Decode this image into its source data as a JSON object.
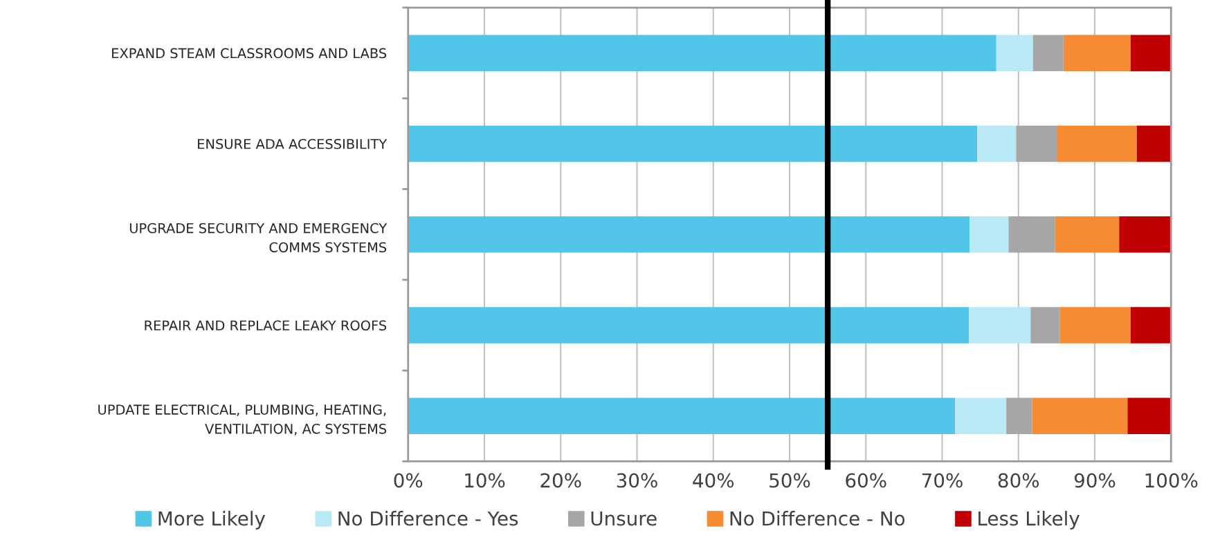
{
  "chart_data": {
    "type": "bar",
    "orientation": "horizontal",
    "stacked": true,
    "categories": [
      "EXPAND STEAM CLASSROOMS AND LABS",
      "ENSURE ADA ACCESSIBILITY",
      "UPGRADE SECURITY AND EMERGENCY\nCOMMS SYSTEMS",
      "REPAIR AND REPLACE LEAKY ROOFS",
      "UPDATE ELECTRICAL, PLUMBING, HEATING,\nVENTILATION, AC SYSTEMS"
    ],
    "series": [
      {
        "name": "More Likely",
        "color": "#51c6e8",
        "values": [
          77.1,
          74.6,
          73.6,
          73.5,
          71.7
        ]
      },
      {
        "name": "No Difference - Yes",
        "color": "#bae9f6",
        "values": [
          4.8,
          5.1,
          5.1,
          8.1,
          6.7
        ]
      },
      {
        "name": "Unsure",
        "color": "#a6a6a6",
        "values": [
          4.0,
          5.4,
          6.1,
          3.8,
          3.4
        ]
      },
      {
        "name": "No Difference - No",
        "color": "#f68b33",
        "values": [
          8.8,
          10.4,
          8.4,
          9.3,
          12.5
        ]
      },
      {
        "name": "Less Likely",
        "color": "#c00000",
        "values": [
          5.3,
          4.5,
          6.8,
          5.3,
          5.7
        ]
      }
    ],
    "xlim": [
      0,
      100
    ],
    "xticks": [
      {
        "value": 0,
        "label": "0%"
      },
      {
        "value": 10,
        "label": "10%"
      },
      {
        "value": 20,
        "label": "20%"
      },
      {
        "value": 30,
        "label": "30%"
      },
      {
        "value": 40,
        "label": "40%"
      },
      {
        "value": 50,
        "label": "50%"
      },
      {
        "value": 60,
        "label": "60%"
      },
      {
        "value": 70,
        "label": "70%"
      },
      {
        "value": 80,
        "label": "80%"
      },
      {
        "value": 90,
        "label": "90%"
      },
      {
        "value": 100,
        "label": "100%"
      }
    ],
    "grid": "x",
    "legend": "bottom",
    "ref_lines": [
      {
        "axis": "x",
        "value": 55,
        "color": "#000000",
        "line_style": "solid"
      }
    ]
  }
}
